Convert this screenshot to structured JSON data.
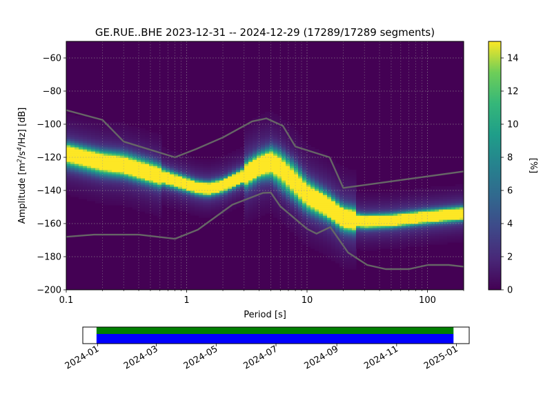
{
  "chart_data": [
    {
      "type": "heatmap",
      "title": "GE.RUE..BHE   2023-12-31 -- 2024-12-29  (17289/17289 segments)",
      "xlabel": "Period [s]",
      "ylabel_parts": {
        "pre": "Amplitude [m",
        "sup1": "2",
        "mid": "/s",
        "sup2": "4",
        "post": "/Hz] [dB]"
      },
      "x_scale": "log",
      "xlim": [
        0.1,
        200
      ],
      "ylim": [
        -200,
        -50
      ],
      "x_ticks": [
        {
          "value": 0.1,
          "label": "0.1"
        },
        {
          "value": 1,
          "label": "1"
        },
        {
          "value": 10,
          "label": "10"
        },
        {
          "value": 100,
          "label": "100"
        }
      ],
      "y_ticks": [
        {
          "value": -60,
          "label": "−60"
        },
        {
          "value": -80,
          "label": "−80"
        },
        {
          "value": -100,
          "label": "−100"
        },
        {
          "value": -120,
          "label": "−120"
        },
        {
          "value": -140,
          "label": "−140"
        },
        {
          "value": -160,
          "label": "−160"
        },
        {
          "value": -180,
          "label": "−180"
        },
        {
          "value": -200,
          "label": "−200"
        }
      ],
      "grid": true,
      "colormap": "viridis",
      "background_color": "#440154",
      "colorbar": {
        "label": "[%]",
        "range": [
          0,
          15
        ],
        "ticks": [
          {
            "value": 0,
            "label": "0"
          },
          {
            "value": 2,
            "label": "2"
          },
          {
            "value": 4,
            "label": "4"
          },
          {
            "value": 6,
            "label": "6"
          },
          {
            "value": 8,
            "label": "8"
          },
          {
            "value": 10,
            "label": "10"
          },
          {
            "value": 12,
            "label": "12"
          },
          {
            "value": 14,
            "label": "14"
          }
        ]
      },
      "density_ridges": [
        {
          "peak": 12,
          "points": [
            [
              0.1,
              -117
            ],
            [
              0.2,
              -123
            ],
            [
              0.3,
              -125
            ],
            [
              0.5,
              -130
            ],
            [
              0.8,
              -134
            ],
            [
              1.2,
              -138
            ],
            [
              1.5,
              -139
            ],
            [
              2,
              -137
            ],
            [
              3,
              -131
            ],
            [
              4,
              -125
            ],
            [
              5,
              -123
            ],
            [
              6,
              -127
            ],
            [
              8,
              -136
            ],
            [
              10,
              -143
            ],
            [
              15,
              -150
            ],
            [
              20,
              -157
            ],
            [
              30,
              -159
            ],
            [
              50,
              -158
            ],
            [
              100,
              -156
            ],
            [
              200,
              -154
            ]
          ]
        },
        {
          "peak": 6,
          "points": [
            [
              0.1,
              -122
            ],
            [
              0.2,
              -127
            ],
            [
              0.3,
              -128
            ],
            [
              0.5,
              -132
            ],
            [
              0.8,
              -136
            ],
            [
              1.2,
              -139
            ],
            [
              1.5,
              -140
            ],
            [
              2,
              -138
            ],
            [
              3,
              -133
            ],
            [
              4,
              -128
            ],
            [
              5,
              -128
            ],
            [
              6,
              -134
            ],
            [
              8,
              -142
            ],
            [
              10,
              -148
            ],
            [
              15,
              -153
            ],
            [
              20,
              -158
            ],
            [
              30,
              -159
            ],
            [
              50,
              -158
            ],
            [
              100,
              -156
            ],
            [
              200,
              -154
            ]
          ]
        },
        {
          "peak": 8,
          "points": [
            [
              0.1,
              -116
            ],
            [
              0.2,
              -120
            ],
            [
              0.3,
              -121
            ],
            [
              0.5,
              -126
            ],
            [
              0.8,
              -132
            ],
            [
              1.2,
              -137
            ],
            [
              1.5,
              -138
            ],
            [
              2,
              -136
            ],
            [
              3,
              -129
            ],
            [
              4,
              -123
            ],
            [
              5,
              -119
            ],
            [
              6,
              -121
            ],
            [
              8,
              -129
            ],
            [
              10,
              -138
            ],
            [
              15,
              -147
            ],
            [
              20,
              -155
            ],
            [
              30,
              -158
            ],
            [
              50,
              -158
            ],
            [
              100,
              -155
            ],
            [
              200,
              -153
            ]
          ]
        }
      ],
      "noise_models": [
        {
          "name": "upper",
          "points": [
            [
              0.1,
              -91.5
            ],
            [
              0.2,
              -97.4
            ],
            [
              0.3,
              -110.5
            ],
            [
              0.8,
              -120
            ],
            [
              1.2,
              -115
            ],
            [
              2,
              -108
            ],
            [
              3.5,
              -98.3
            ],
            [
              4.6,
              -96.5
            ],
            [
              6.3,
              -101
            ],
            [
              8,
              -113.5
            ],
            [
              15.4,
              -120
            ],
            [
              20,
              -138.5
            ],
            [
              200,
              -128.5
            ]
          ]
        },
        {
          "name": "lower",
          "points": [
            [
              0.1,
              -168
            ],
            [
              0.17,
              -166.7
            ],
            [
              0.4,
              -166.7
            ],
            [
              0.8,
              -169.2
            ],
            [
              1.24,
              -163.7
            ],
            [
              2.4,
              -148.6
            ],
            [
              4.3,
              -141.5
            ],
            [
              5,
              -141.3
            ],
            [
              6,
              -149.6
            ],
            [
              10,
              -163.2
            ],
            [
              12,
              -166.1
            ],
            [
              15.6,
              -162.1
            ],
            [
              21.9,
              -177.5
            ],
            [
              31.6,
              -185
            ],
            [
              45,
              -187.5
            ],
            [
              70,
              -187.5
            ],
            [
              101,
              -185
            ],
            [
              150,
              -185
            ],
            [
              200,
              -186
            ]
          ]
        }
      ]
    },
    {
      "type": "table",
      "x_scale": "time",
      "xlim": [
        "2023-12-17",
        "2025-01-14"
      ],
      "x_ticks": [
        "2024-01",
        "2024-03",
        "2024-05",
        "2024-07",
        "2024-09",
        "2024-11",
        "2025-01"
      ],
      "coverage": [
        {
          "name": "data",
          "color": "#0000ff",
          "start": "2023-12-31",
          "end": "2024-12-29"
        },
        {
          "name": "psd",
          "color": "#008000",
          "start": "2023-12-31",
          "end": "2024-12-29"
        }
      ]
    }
  ]
}
